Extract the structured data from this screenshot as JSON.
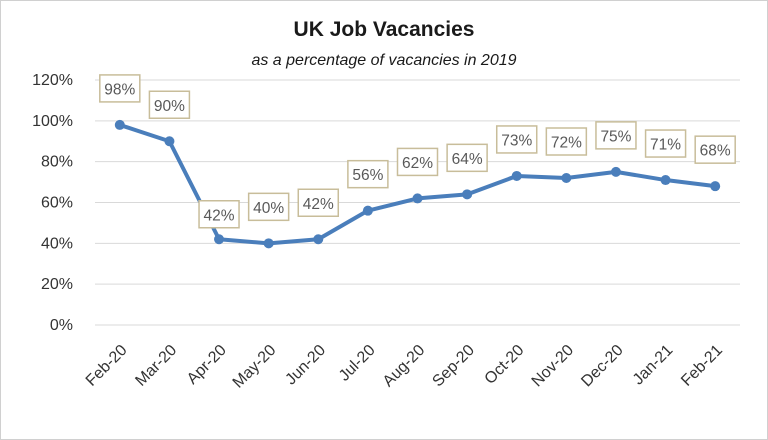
{
  "chart_data": {
    "type": "line",
    "title": "UK Job Vacancies",
    "subtitle": "as a percentage of vacancies in 2019",
    "xlabel": "",
    "ylabel": "",
    "categories": [
      "Feb-20",
      "Mar-20",
      "Apr-20",
      "May-20",
      "Jun-20",
      "Jul-20",
      "Aug-20",
      "Sep-20",
      "Oct-20",
      "Nov-20",
      "Dec-20",
      "Jan-21",
      "Feb-21"
    ],
    "series": [
      {
        "values": [
          98,
          90,
          42,
          40,
          42,
          56,
          62,
          64,
          73,
          72,
          75,
          71,
          68
        ]
      }
    ],
    "data_labels": [
      "98%",
      "90%",
      "42%",
      "40%",
      "42%",
      "56%",
      "62%",
      "64%",
      "73%",
      "72%",
      "75%",
      "71%",
      "68%"
    ],
    "y_ticks": [
      "0%",
      "20%",
      "40%",
      "60%",
      "80%",
      "100%",
      "120%"
    ],
    "ylim": [
      0,
      120
    ],
    "grid": true,
    "legend": "none",
    "colors": {
      "line": "#4a7ebb",
      "grid": "#d9d9d9",
      "label_border": "#c8bd9a"
    }
  }
}
